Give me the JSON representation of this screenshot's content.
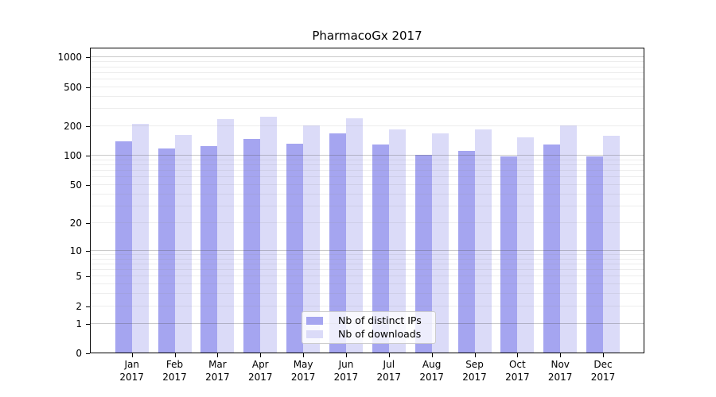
{
  "chart_data": {
    "type": "bar",
    "title": "PharmacoGx 2017",
    "categories": [
      "Jan 2017",
      "Feb 2017",
      "Mar 2017",
      "Apr 2017",
      "May 2017",
      "Jun 2017",
      "Jul 2017",
      "Aug 2017",
      "Sep 2017",
      "Oct 2017",
      "Nov 2017",
      "Dec 2017"
    ],
    "series": [
      {
        "name": "Nb of distinct IPs",
        "color": "#a5a5f0",
        "values": [
          138,
          116,
          124,
          147,
          131,
          166,
          127,
          100,
          111,
          97,
          127,
          97
        ]
      },
      {
        "name": "Nb of downloads",
        "color": "#dbdbf8",
        "values": [
          207,
          161,
          231,
          244,
          200,
          235,
          183,
          167,
          184,
          152,
          201,
          156
        ]
      }
    ],
    "y_axis": {
      "scale": "log10(value+1), 0 at baseline",
      "tick_values": [
        0,
        1,
        2,
        5,
        10,
        20,
        50,
        100,
        200,
        500,
        1000
      ],
      "ylim": [
        0,
        1260
      ]
    },
    "grid": {
      "major_values": [
        1,
        10,
        100,
        1000
      ],
      "minor_multiples": [
        2,
        3,
        4,
        5,
        6,
        7,
        8,
        9
      ],
      "orientation": "horizontal"
    },
    "legend": {
      "position": "lower-center"
    },
    "colors": {
      "axis": "#000000",
      "major_grid": "#c9c9c9",
      "minor_grid": "#ececec",
      "background": "#ffffff"
    }
  }
}
